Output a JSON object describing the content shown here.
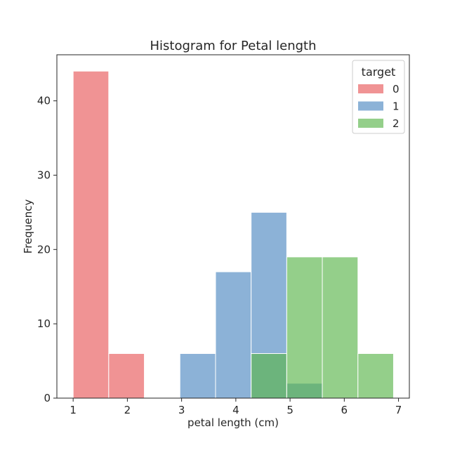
{
  "chart_data": {
    "type": "bar",
    "subtype": "histogram",
    "title": "Histogram for Petal length",
    "xlabel": "petal length (cm)",
    "ylabel": "Frequency",
    "xlim": [
      0.7,
      7.2
    ],
    "ylim": [
      0,
      46.2
    ],
    "xticks": [
      1,
      2,
      3,
      4,
      5,
      6,
      7
    ],
    "yticks": [
      0,
      10,
      20,
      30,
      40
    ],
    "bin_edges": [
      1.0,
      1.656,
      2.313,
      2.969,
      3.626,
      4.282,
      4.939,
      5.595,
      6.252,
      6.908
    ],
    "series": [
      {
        "name": "0",
        "color": "#e8595a",
        "counts": [
          44,
          6,
          0,
          0,
          0,
          0,
          0,
          0,
          0
        ]
      },
      {
        "name": "1",
        "color": "#4f88c1",
        "counts": [
          0,
          0,
          0,
          6,
          17,
          25,
          2,
          0,
          0
        ]
      },
      {
        "name": "2",
        "color": "#5ab54c",
        "counts": [
          0,
          0,
          0,
          0,
          0,
          6,
          19,
          19,
          6
        ]
      }
    ],
    "alpha": 0.65,
    "grid": false,
    "legend": {
      "title": "target",
      "placement": "top-right"
    }
  }
}
